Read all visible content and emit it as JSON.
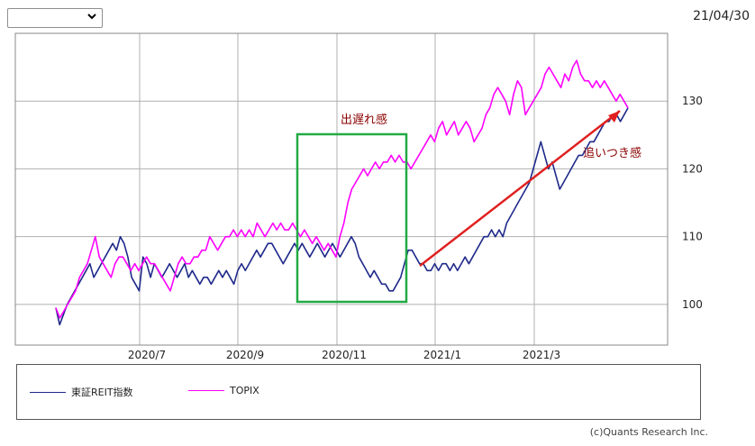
{
  "header": {
    "date_label": "21/04/30",
    "dropdown_value": ""
  },
  "footer": {
    "credit": "(c)Quants Research Inc."
  },
  "annotations": {
    "lagging": "出遅れ感",
    "catching_up": "追いつき感"
  },
  "colors": {
    "reit": "#1f2a8a",
    "topix": "#ff00ff",
    "box": "#22aa44",
    "arrow": "#e02020",
    "annotation_text": "#8b0000",
    "grid": "#b0b0b0"
  },
  "chart_data": {
    "type": "line",
    "xlabel": "",
    "ylabel": "",
    "x_ticks": [
      "2020/7",
      "2020/9",
      "2020/11",
      "2021/1",
      "2021/3"
    ],
    "y_ticks": [
      100,
      110,
      120,
      130
    ],
    "ylim": [
      94,
      140
    ],
    "grid": true,
    "legend_position": "bottom",
    "series": [
      {
        "name": "東証REIT指数",
        "color": "#1f2a8a",
        "values": [
          99.5,
          97,
          98.5,
          100,
          101,
          102,
          103,
          104,
          105,
          106,
          104,
          105,
          106,
          107,
          108,
          109,
          108,
          110,
          109,
          107,
          104,
          103,
          102,
          107,
          106,
          104,
          106,
          105,
          104,
          105,
          106,
          105,
          104,
          105,
          106,
          104,
          105,
          104,
          103,
          104,
          104,
          103,
          104,
          105,
          104,
          105,
          104,
          103,
          105,
          106,
          105,
          106,
          107,
          108,
          107,
          108,
          109,
          109,
          108,
          107,
          106,
          107,
          108,
          109,
          108,
          109,
          108,
          107,
          108,
          109,
          108,
          107,
          108,
          109,
          108,
          107,
          108,
          109,
          110,
          109,
          107,
          106,
          105,
          104,
          105,
          104,
          103,
          103,
          102,
          102,
          103,
          104,
          106,
          108,
          108,
          107,
          106,
          106,
          105,
          105,
          106,
          105,
          106,
          106,
          105,
          106,
          105,
          106,
          107,
          106,
          107,
          108,
          109,
          110,
          110,
          111,
          110,
          111,
          110,
          112,
          113,
          114,
          115,
          116,
          117,
          118,
          120,
          122,
          124,
          122,
          120,
          121,
          119,
          117,
          118,
          119,
          120,
          121,
          122,
          122,
          123,
          124,
          124,
          125,
          126,
          127,
          127,
          128,
          128,
          127,
          128,
          129
        ]
      },
      {
        "name": "TOPIX",
        "color": "#ff00ff",
        "values": [
          99.5,
          98,
          99,
          100,
          101,
          102,
          104,
          105,
          106,
          108,
          110,
          107,
          106,
          105,
          104,
          106,
          107,
          107,
          106,
          105,
          106,
          105,
          106,
          107,
          106,
          106,
          105,
          104,
          103,
          102,
          104,
          106,
          107,
          106,
          106,
          107,
          107,
          108,
          108,
          110,
          109,
          108,
          109,
          110,
          110,
          111,
          110,
          111,
          110,
          111,
          110,
          112,
          111,
          110,
          111,
          112,
          111,
          112,
          111,
          111,
          112,
          111,
          110,
          111,
          110,
          109,
          110,
          109,
          108,
          109,
          108,
          107,
          110,
          112,
          115,
          117,
          118,
          119,
          120,
          119,
          120,
          121,
          120,
          121,
          121,
          122,
          121,
          122,
          121,
          121,
          120,
          121,
          122,
          123,
          124,
          125,
          124,
          126,
          127,
          125,
          126,
          127,
          125,
          126,
          127,
          126,
          124,
          125,
          126,
          128,
          129,
          131,
          132,
          131,
          130,
          128,
          131,
          133,
          132,
          128,
          129,
          130,
          131,
          132,
          134,
          135,
          134,
          133,
          132,
          134,
          133,
          135,
          136,
          134,
          133,
          133,
          132,
          133,
          132,
          133,
          132,
          131,
          130,
          131,
          130,
          129
        ]
      }
    ]
  }
}
